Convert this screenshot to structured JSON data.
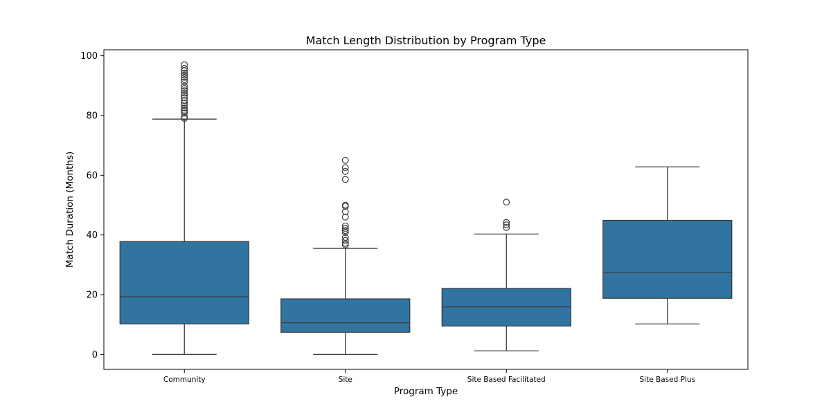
{
  "chart_data": {
    "type": "box",
    "title": "Match Length Distribution by Program Type",
    "xlabel": "Program Type",
    "ylabel": "Match Duration (Months)",
    "ylim": [
      -5,
      102
    ],
    "yticks": [
      0,
      20,
      40,
      60,
      80,
      100
    ],
    "grid": false,
    "box_color": "#3274a1",
    "line_color": "#3d3d3d",
    "categories": [
      "Community",
      "Site",
      "Site Based Facilitated",
      "Site Based Plus"
    ],
    "boxes": [
      {
        "category": "Community",
        "whisker_low": 0,
        "q1": 10.2,
        "median": 19.3,
        "q3": 37.8,
        "whisker_high": 78.8,
        "outliers": [
          79.0,
          79.5,
          80.8,
          81.3,
          81.8,
          82.5,
          83.5,
          84.2,
          85.0,
          86.0,
          86.8,
          87.5,
          88.3,
          89.0,
          89.8,
          91.2,
          92.0,
          92.8,
          93.5,
          94.2,
          95.0,
          95.8,
          97.0
        ]
      },
      {
        "category": "Site",
        "whisker_low": 0,
        "q1": 7.4,
        "median": 10.6,
        "q3": 18.6,
        "whisker_high": 35.5,
        "outliers": [
          36.7,
          37.2,
          38.2,
          39.2,
          40.8,
          41.5,
          42.2,
          43.0,
          46.0,
          47.8,
          49.6,
          50.0,
          58.6,
          61.3,
          62.6,
          65.0
        ]
      },
      {
        "category": "Site Based Facilitated",
        "whisker_low": 1.2,
        "q1": 9.5,
        "median": 15.9,
        "q3": 22.1,
        "whisker_high": 40.3,
        "outliers": [
          42.5,
          43.4,
          44.2,
          51.0
        ]
      },
      {
        "category": "Site Based Plus",
        "whisker_low": 10.2,
        "q1": 18.8,
        "median": 27.4,
        "q3": 44.9,
        "whisker_high": 62.8,
        "outliers": []
      }
    ]
  }
}
